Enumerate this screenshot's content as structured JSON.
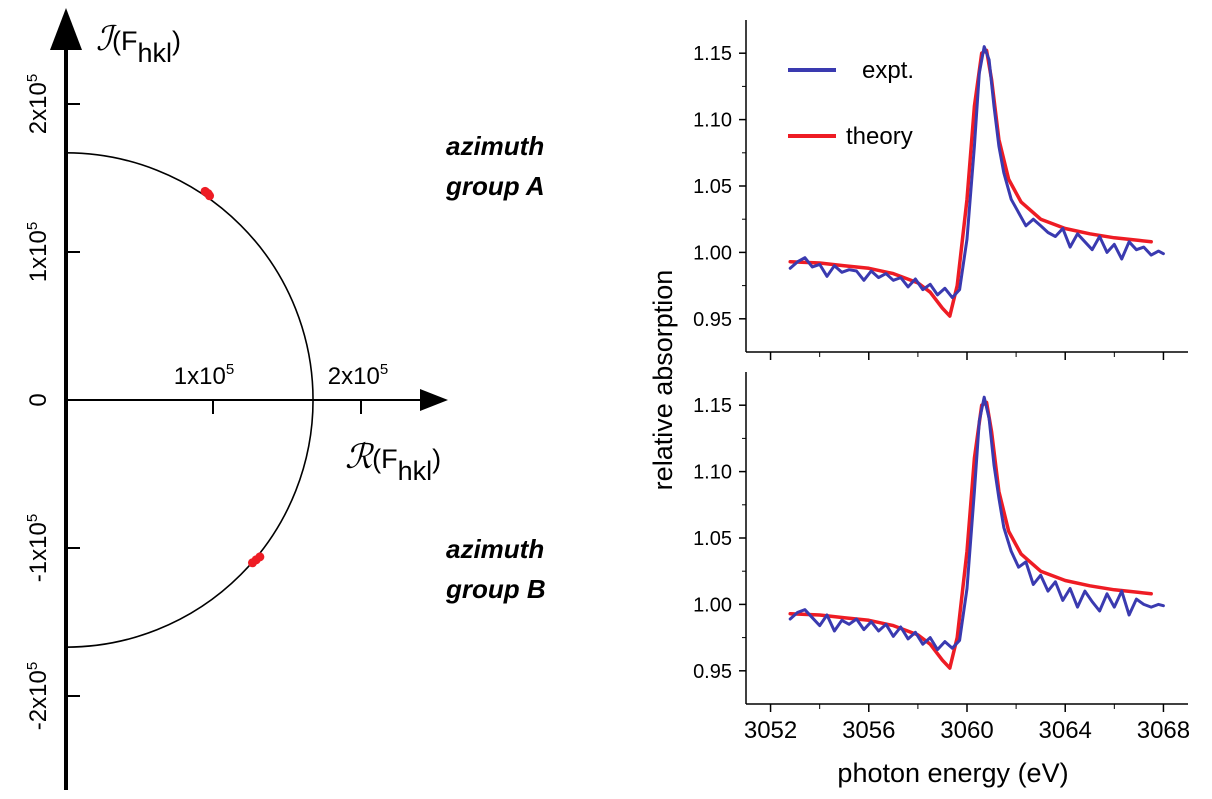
{
  "colors": {
    "expt": "#3a3ab0",
    "theory": "#ee1c24",
    "axis": "#000000",
    "points": "#ee1c24"
  },
  "argand": {
    "imag_axis_label": {
      "symbol": "ℐ",
      "open": "(F",
      "sub": "hkl",
      "close": ")"
    },
    "real_axis_label": {
      "symbol": "ℛ",
      "open": "(F",
      "sub": "hkl",
      "close": ")"
    },
    "x_tick_labels": [
      {
        "value": 100000,
        "mant": "1x10",
        "exp": "5"
      },
      {
        "value": 200000,
        "mant": "2x10",
        "exp": "5"
      }
    ],
    "y_tick_labels": [
      {
        "value": 200000,
        "mant": "2x10",
        "exp": "5"
      },
      {
        "value": 100000,
        "mant": "1x10",
        "exp": "5"
      },
      {
        "value": 0,
        "mant": "0",
        "exp": ""
      },
      {
        "value": -100000,
        "mant": "-1x10",
        "exp": "5"
      },
      {
        "value": -200000,
        "mant": "-2x10",
        "exp": "5"
      }
    ],
    "circle_radius": 167000,
    "points": [
      {
        "x": 94000,
        "y": 141000
      },
      {
        "x": 97000,
        "y": 138000
      },
      {
        "x": 96000,
        "y": 139500
      },
      {
        "x": 131000,
        "y": -106000
      },
      {
        "x": 126000,
        "y": -110000
      },
      {
        "x": 128500,
        "y": -108000
      }
    ],
    "annotations": {
      "group_a_line1": "azimuth",
      "group_a_line2": "group A",
      "group_b_line1": "azimuth",
      "group_b_line2": "group B"
    }
  },
  "chart_data": [
    {
      "type": "line",
      "panel": "top",
      "xlim": [
        3051,
        3069
      ],
      "ylim": [
        0.925,
        1.175
      ],
      "yticks": [
        "0.95",
        "1.00",
        "1.05",
        "1.10",
        "1.15"
      ],
      "legend": [
        "expt.",
        "theory"
      ],
      "legend_position": "top-left",
      "series": [
        {
          "name": "expt.",
          "x": [
            3052.8,
            3053.1,
            3053.4,
            3053.7,
            3054.0,
            3054.3,
            3054.6,
            3054.9,
            3055.2,
            3055.5,
            3055.8,
            3056.1,
            3056.4,
            3056.7,
            3057.0,
            3057.3,
            3057.6,
            3057.9,
            3058.2,
            3058.5,
            3058.8,
            3059.1,
            3059.4,
            3059.7,
            3060.0,
            3060.3,
            3060.5,
            3060.7,
            3060.9,
            3061.1,
            3061.3,
            3061.5,
            3061.8,
            3062.1,
            3062.4,
            3062.7,
            3063.0,
            3063.3,
            3063.6,
            3063.9,
            3064.2,
            3064.5,
            3064.8,
            3065.1,
            3065.4,
            3065.7,
            3066.0,
            3066.3,
            3066.6,
            3066.9,
            3067.2,
            3067.5,
            3067.8,
            3068.0
          ],
          "y": [
            0.988,
            0.993,
            0.996,
            0.989,
            0.991,
            0.982,
            0.99,
            0.985,
            0.987,
            0.986,
            0.979,
            0.986,
            0.981,
            0.984,
            0.979,
            0.981,
            0.974,
            0.98,
            0.972,
            0.976,
            0.968,
            0.973,
            0.966,
            0.972,
            1.01,
            1.08,
            1.135,
            1.155,
            1.145,
            1.11,
            1.08,
            1.06,
            1.04,
            1.03,
            1.02,
            1.025,
            1.02,
            1.015,
            1.012,
            1.018,
            1.004,
            1.014,
            1.008,
            1.002,
            1.012,
            1.0,
            1.006,
            0.995,
            1.008,
            1.002,
            1.004,
            0.998,
            1.001,
            0.999
          ]
        },
        {
          "name": "theory",
          "x": [
            3052.8,
            3054.0,
            3055.0,
            3056.0,
            3057.0,
            3058.0,
            3058.5,
            3059.0,
            3059.3,
            3059.6,
            3060.0,
            3060.3,
            3060.6,
            3060.8,
            3061.0,
            3061.3,
            3061.7,
            3062.2,
            3063.0,
            3064.0,
            3065.0,
            3066.0,
            3067.0,
            3067.5
          ],
          "y": [
            0.993,
            0.992,
            0.99,
            0.988,
            0.984,
            0.977,
            0.97,
            0.958,
            0.952,
            0.975,
            1.04,
            1.11,
            1.15,
            1.152,
            1.13,
            1.085,
            1.055,
            1.038,
            1.025,
            1.018,
            1.014,
            1.011,
            1.009,
            1.008
          ]
        }
      ]
    },
    {
      "type": "line",
      "panel": "bottom",
      "xlim": [
        3051,
        3069
      ],
      "ylim": [
        0.925,
        1.175
      ],
      "yticks": [
        "0.95",
        "1.00",
        "1.05",
        "1.10",
        "1.15"
      ],
      "xticks": [
        "3052",
        "3056",
        "3060",
        "3064",
        "3068"
      ],
      "xlabel": "photon energy (eV)",
      "ylabel": "relative absorption",
      "series": [
        {
          "name": "expt.",
          "x": [
            3052.8,
            3053.1,
            3053.4,
            3053.7,
            3054.0,
            3054.3,
            3054.6,
            3054.9,
            3055.2,
            3055.5,
            3055.8,
            3056.1,
            3056.4,
            3056.7,
            3057.0,
            3057.3,
            3057.6,
            3057.9,
            3058.2,
            3058.5,
            3058.8,
            3059.1,
            3059.4,
            3059.7,
            3060.0,
            3060.3,
            3060.5,
            3060.7,
            3060.9,
            3061.1,
            3061.3,
            3061.5,
            3061.8,
            3062.1,
            3062.4,
            3062.7,
            3063.0,
            3063.3,
            3063.6,
            3063.9,
            3064.2,
            3064.5,
            3064.8,
            3065.1,
            3065.4,
            3065.7,
            3066.0,
            3066.3,
            3066.6,
            3066.9,
            3067.2,
            3067.5,
            3067.8,
            3068.0
          ],
          "y": [
            0.989,
            0.994,
            0.996,
            0.99,
            0.984,
            0.992,
            0.98,
            0.988,
            0.985,
            0.989,
            0.981,
            0.987,
            0.98,
            0.985,
            0.976,
            0.983,
            0.974,
            0.979,
            0.97,
            0.975,
            0.966,
            0.972,
            0.967,
            0.973,
            1.012,
            1.085,
            1.138,
            1.156,
            1.14,
            1.105,
            1.08,
            1.058,
            1.04,
            1.028,
            1.032,
            1.015,
            1.022,
            1.01,
            1.017,
            1.003,
            1.012,
            0.998,
            1.01,
            1.002,
            0.995,
            1.008,
            0.998,
            1.01,
            0.992,
            1.004,
            1.0,
            0.998,
            1.0,
            0.999
          ]
        },
        {
          "name": "theory",
          "x": [
            3052.8,
            3054.0,
            3055.0,
            3056.0,
            3057.0,
            3058.0,
            3058.5,
            3059.0,
            3059.3,
            3059.6,
            3060.0,
            3060.3,
            3060.6,
            3060.8,
            3061.0,
            3061.3,
            3061.7,
            3062.2,
            3063.0,
            3064.0,
            3065.0,
            3066.0,
            3067.0,
            3067.5
          ],
          "y": [
            0.993,
            0.992,
            0.99,
            0.988,
            0.984,
            0.977,
            0.97,
            0.958,
            0.952,
            0.975,
            1.04,
            1.11,
            1.15,
            1.152,
            1.13,
            1.085,
            1.055,
            1.038,
            1.025,
            1.018,
            1.014,
            1.011,
            1.009,
            1.008
          ]
        }
      ]
    }
  ]
}
